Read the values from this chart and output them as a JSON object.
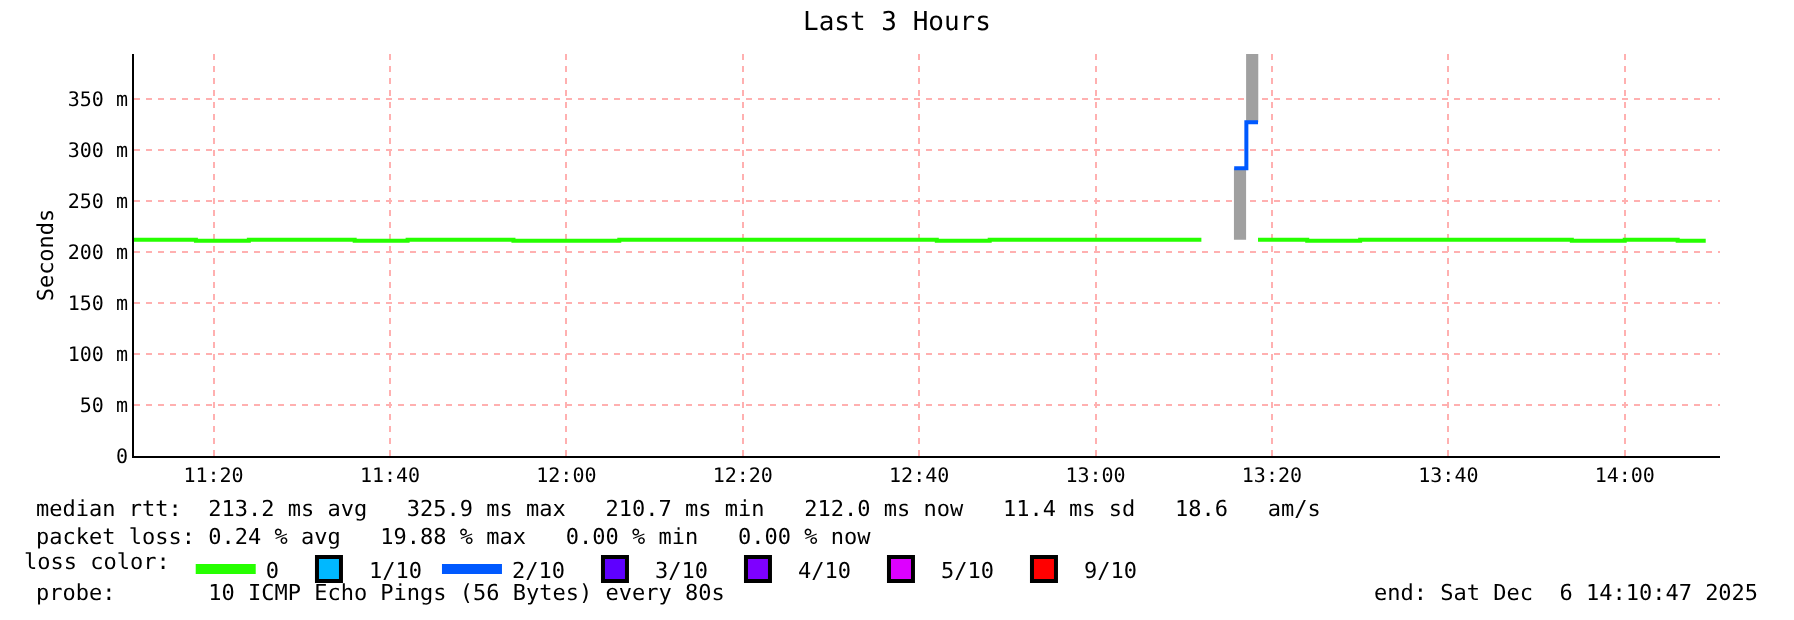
{
  "chart_data": {
    "type": "step",
    "title": "Last 3 Hours",
    "ylabel": "Seconds",
    "xlim": [
      11.183,
      14.18
    ],
    "xticks": [
      {
        "value": 11.3333,
        "label": "11:20"
      },
      {
        "value": 11.6667,
        "label": "11:40"
      },
      {
        "value": 12.0,
        "label": "12:00"
      },
      {
        "value": 12.3333,
        "label": "12:20"
      },
      {
        "value": 12.6667,
        "label": "12:40"
      },
      {
        "value": 13.0,
        "label": "13:00"
      },
      {
        "value": 13.3333,
        "label": "13:20"
      },
      {
        "value": 13.6667,
        "label": "13:40"
      },
      {
        "value": 14.0,
        "label": "14:00"
      }
    ],
    "ylim": [
      0,
      394
    ],
    "yticks": [
      0,
      {
        "value": 50,
        "label": "50 m"
      },
      {
        "value": 100,
        "label": "100 m"
      },
      {
        "value": 150,
        "label": "150 m"
      },
      {
        "value": 200,
        "label": "200 m"
      },
      {
        "value": 250,
        "label": "250 m"
      },
      {
        "value": 300,
        "label": "300 m"
      },
      {
        "value": 350,
        "label": "350 m"
      }
    ],
    "grid": true,
    "legend": "bottom",
    "legend_title": "loss color:",
    "series": [
      {
        "type": "bar",
        "color": "#a0a0a0",
        "x": [
          13.273,
          13.296
        ],
        "base": [
          212,
          327
        ],
        "values": [
          70,
          67
        ]
      },
      {
        "name": "0",
        "color": "#26ff00",
        "x": [
          11.183,
          11.3,
          11.4,
          11.5,
          11.6,
          11.7,
          11.8,
          11.9,
          12.0,
          12.1,
          12.2,
          12.3,
          12.4,
          12.5,
          12.6,
          12.7,
          12.8,
          12.9,
          13.0,
          13.1,
          13.2,
          13.262,
          13.307,
          13.4,
          13.5,
          13.6,
          13.7,
          13.8,
          13.9,
          14.0,
          14.1,
          14.153
        ],
        "values": [
          212,
          211,
          212,
          212,
          211,
          212,
          212,
          211,
          211,
          212,
          212,
          212,
          212,
          212,
          212,
          211,
          212,
          212,
          212,
          212,
          212,
          null,
          212,
          211,
          212,
          212,
          212,
          212,
          211,
          212,
          211,
          211
        ]
      },
      {
        "name": "1/10",
        "color": "#00b8ff"
      },
      {
        "name": "2/10",
        "color": "#0059ff",
        "x": [
          13.262,
          13.285,
          13.307
        ],
        "values": [
          282,
          327,
          327
        ]
      },
      {
        "name": "3/10",
        "color": "#5e00ff"
      },
      {
        "name": "4/10",
        "color": "#7e00ff"
      },
      {
        "name": "5/10",
        "color": "#dd00ff"
      },
      {
        "name": "9/10",
        "color": "#ff0000"
      }
    ],
    "annotations": [
      "median rtt:  213.2 ms avg   325.9 ms max   210.7 ms min   212.0 ms now   11.4 ms sd   18.6   am/s",
      "packet loss: 0.24 % avg   19.88 % max   0.00 % min   0.00 % now",
      "probe:       10 ICMP Echo Pings (56 Bytes) every 80s",
      "end: Sat Dec  6 14:10:47 2025"
    ]
  }
}
